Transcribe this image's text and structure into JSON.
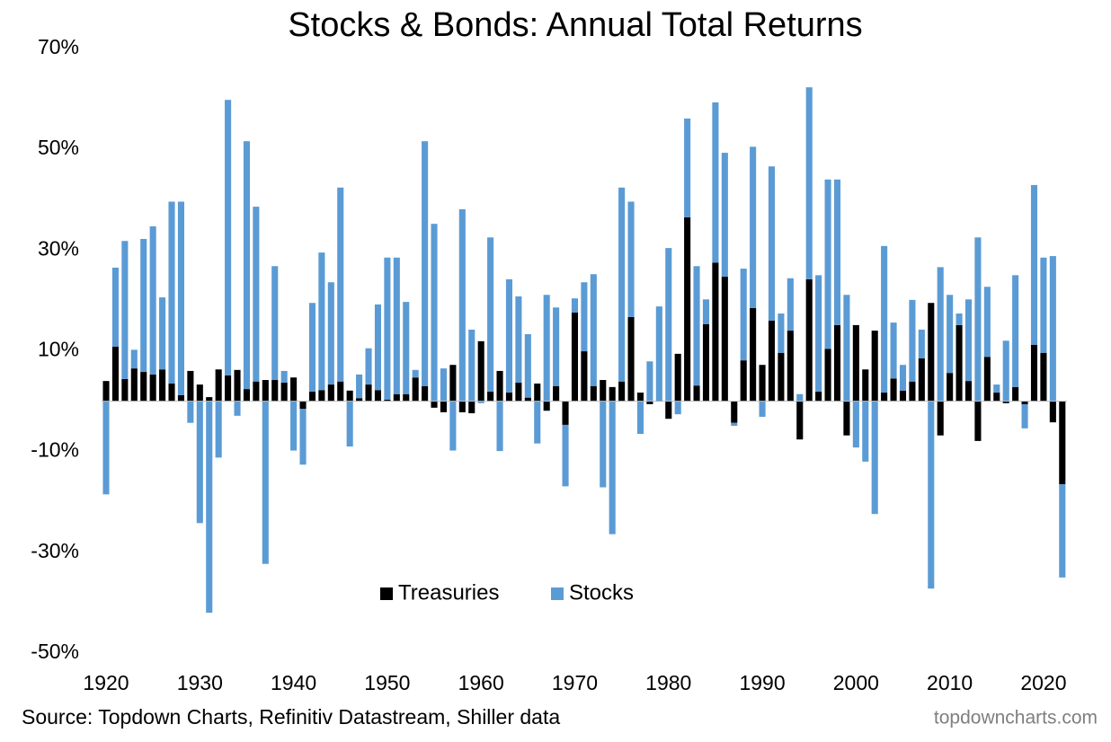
{
  "chart_data": {
    "type": "bar",
    "stacked": true,
    "title": "Stocks & Bonds: Annual Total Returns",
    "source": "Source: Topdown Charts, Refinitiv Datastream, Shiller data",
    "credit": "topdowncharts.com",
    "legend": "lower center",
    "grid": false,
    "x": [
      1920,
      1921,
      1922,
      1923,
      1924,
      1925,
      1926,
      1927,
      1928,
      1929,
      1930,
      1931,
      1932,
      1933,
      1934,
      1935,
      1936,
      1937,
      1938,
      1939,
      1940,
      1941,
      1942,
      1943,
      1944,
      1945,
      1946,
      1947,
      1948,
      1949,
      1950,
      1951,
      1952,
      1953,
      1954,
      1955,
      1956,
      1957,
      1958,
      1959,
      1960,
      1961,
      1962,
      1963,
      1964,
      1965,
      1966,
      1967,
      1968,
      1969,
      1970,
      1971,
      1972,
      1973,
      1974,
      1975,
      1976,
      1977,
      1978,
      1979,
      1980,
      1981,
      1982,
      1983,
      1984,
      1985,
      1986,
      1987,
      1988,
      1989,
      1990,
      1991,
      1992,
      1993,
      1994,
      1995,
      1996,
      1997,
      1998,
      1999,
      2000,
      2001,
      2002,
      2003,
      2004,
      2005,
      2006,
      2007,
      2008,
      2009,
      2010,
      2011,
      2012,
      2013,
      2014,
      2015,
      2016,
      2017,
      2018,
      2019,
      2020,
      2021,
      2022
    ],
    "xlim": [
      1919.5,
      2022.5
    ],
    "xticks": [
      1920,
      1930,
      1940,
      1950,
      1960,
      1970,
      1980,
      1990,
      2000,
      2010,
      2020
    ],
    "ylim": [
      -50,
      70
    ],
    "yticks": [
      {
        "value": -50,
        "label": "-50%"
      },
      {
        "value": -30,
        "label": "-30%"
      },
      {
        "value": -10,
        "label": "-10%"
      },
      {
        "value": 10,
        "label": "10%"
      },
      {
        "value": 30,
        "label": "30%"
      },
      {
        "value": 50,
        "label": "50%"
      },
      {
        "value": 70,
        "label": "70%"
      }
    ],
    "series": [
      {
        "name": "Treasuries",
        "color": "#000000",
        "values": [
          4.0,
          10.8,
          4.4,
          6.5,
          5.8,
          5.3,
          6.3,
          3.5,
          1.2,
          6.0,
          3.3,
          0.8,
          6.3,
          5.1,
          6.2,
          2.4,
          3.9,
          4.2,
          4.2,
          3.7,
          4.7,
          -1.5,
          1.9,
          2.2,
          3.3,
          3.9,
          2.1,
          0.6,
          3.3,
          2.2,
          0.3,
          1.4,
          1.4,
          4.7,
          3.0,
          -1.3,
          -2.2,
          7.2,
          -2.2,
          -2.4,
          11.9,
          1.9,
          6.0,
          1.7,
          3.7,
          0.7,
          3.5,
          -1.9,
          3.0,
          -4.7,
          17.6,
          9.9,
          3.0,
          4.2,
          2.8,
          3.9,
          16.7,
          1.7,
          -0.6,
          0.1,
          -3.5,
          9.4,
          36.5,
          3.1,
          15.3,
          27.5,
          24.7,
          -4.3,
          8.1,
          18.5,
          7.2,
          16.0,
          9.6,
          14.0,
          -7.6,
          24.2,
          1.9,
          10.4,
          15.1,
          -6.8,
          15.1,
          6.3,
          14.0,
          1.7,
          4.5,
          2.1,
          3.9,
          8.5,
          19.5,
          -6.8,
          5.6,
          15.1,
          4.0,
          -7.9,
          8.8,
          1.7,
          -0.4,
          2.8,
          -0.6,
          11.2,
          9.6,
          -4.2,
          -16.5
        ]
      },
      {
        "name": "Stocks",
        "color": "#5b9bd5",
        "values": [
          -18.5,
          15.7,
          27.4,
          3.7,
          26.4,
          29.4,
          14.3,
          36.1,
          38.4,
          -4.3,
          -24.2,
          -42.0,
          -11.2,
          54.7,
          -2.9,
          49.2,
          34.7,
          -32.3,
          22.6,
          2.3,
          -9.8,
          -11.1,
          17.6,
          27.3,
          20.3,
          38.5,
          -9.0,
          4.7,
          7.2,
          17.0,
          28.2,
          27.1,
          18.3,
          1.5,
          48.6,
          35.2,
          6.5,
          -9.8,
          38.1,
          14.2,
          -0.4,
          30.6,
          -9.9,
          22.5,
          17.1,
          12.6,
          -8.4,
          21.1,
          15.6,
          -12.2,
          2.8,
          13.7,
          22.2,
          -17.1,
          -26.4,
          38.5,
          22.9,
          -6.5,
          7.9,
          18.7,
          30.4,
          -2.6,
          19.6,
          23.7,
          4.9,
          31.8,
          24.6,
          -0.6,
          18.2,
          32.0,
          -3.1,
          30.6,
          7.8,
          10.4,
          1.4,
          38.1,
          23.1,
          33.6,
          28.9,
          21.1,
          -9.2,
          -12.0,
          -22.4,
          29.1,
          11.1,
          5.1,
          16.2,
          5.7,
          -37.2,
          26.6,
          15.5,
          2.3,
          16.2,
          32.5,
          13.9,
          1.6,
          12.0,
          22.2,
          -4.8,
          31.7,
          18.9,
          28.8,
          -18.5
        ]
      }
    ]
  }
}
